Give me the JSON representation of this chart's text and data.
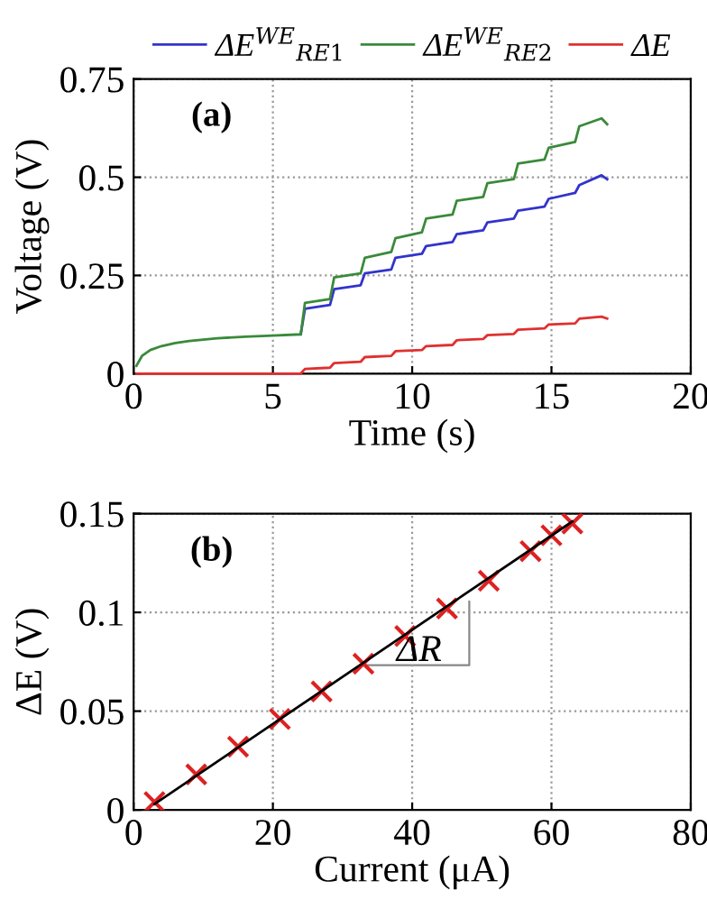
{
  "chart_data": [
    {
      "type": "line",
      "xlabel": "Time (s)",
      "ylabel": "Voltage (V)",
      "xlim": [
        0,
        20
      ],
      "ylim": [
        0,
        0.75
      ],
      "xticks": [
        0,
        5,
        10,
        15,
        20
      ],
      "yticks": [
        0,
        0.25,
        0.5,
        0.75
      ],
      "grid": true,
      "legend": "top",
      "annotations": [
        "(a)"
      ],
      "x": [
        0.1,
        0.3,
        0.6,
        1,
        1.5,
        2,
        3,
        4,
        5,
        6.0,
        6.15,
        7.05,
        7.2,
        8.15,
        8.3,
        9.25,
        9.4,
        10.35,
        10.5,
        11.45,
        11.6,
        12.55,
        12.7,
        13.65,
        13.8,
        14.75,
        14.9,
        15.85,
        16.0,
        16.8,
        17.0
      ],
      "series": [
        {
          "name": "ΔE$^{WE}$$_{RE1}$",
          "color": "#3333cc",
          "values": [
            null,
            null,
            null,
            null,
            null,
            null,
            null,
            null,
            null,
            0.1,
            0.165,
            0.175,
            0.215,
            0.225,
            0.255,
            0.265,
            0.295,
            0.305,
            0.325,
            0.335,
            0.355,
            0.365,
            0.385,
            0.395,
            0.415,
            0.425,
            0.445,
            0.46,
            0.48,
            0.505,
            0.495
          ]
        },
        {
          "name": "ΔE$^{WE}$$_{RE2}$",
          "color": "#3a8a3a",
          "values": [
            0.02,
            0.045,
            0.06,
            0.07,
            0.078,
            0.083,
            0.09,
            0.094,
            0.097,
            0.1,
            0.18,
            0.19,
            0.245,
            0.255,
            0.295,
            0.31,
            0.345,
            0.36,
            0.395,
            0.405,
            0.44,
            0.45,
            0.485,
            0.495,
            0.535,
            0.545,
            0.575,
            0.59,
            0.63,
            0.65,
            0.635
          ]
        },
        {
          "name": "ΔE",
          "color": "#e03030",
          "values": [
            0,
            0,
            0,
            0,
            0,
            0,
            0,
            0,
            0,
            0,
            0.012,
            0.015,
            0.027,
            0.03,
            0.042,
            0.045,
            0.057,
            0.06,
            0.07,
            0.073,
            0.085,
            0.088,
            0.098,
            0.101,
            0.112,
            0.115,
            0.125,
            0.128,
            0.14,
            0.145,
            0.14
          ]
        }
      ]
    },
    {
      "type": "scatter",
      "xlabel": "Current (μA)",
      "ylabel": "ΔE (V)",
      "xlim": [
        0,
        80
      ],
      "ylim": [
        0,
        0.15
      ],
      "xticks": [
        0,
        20,
        40,
        60,
        80
      ],
      "yticks": [
        0,
        0.05,
        0.1,
        0.15
      ],
      "grid": true,
      "annotations": [
        "(b)",
        {
          "text": "ΔR",
          "x": 41,
          "y": 0.08
        }
      ],
      "series": [
        {
          "color": "#dd2222",
          "marker": "cross",
          "x": [
            3,
            9,
            15,
            21,
            27,
            33,
            39,
            45,
            51,
            57,
            60,
            63
          ],
          "values": [
            0.004,
            0.018,
            0.032,
            0.046,
            0.06,
            0.074,
            0.088,
            0.102,
            0.116,
            0.131,
            0.139,
            0.145
          ]
        },
        {
          "type": "line",
          "marker": "none",
          "color": "#000000",
          "x": [
            3,
            63
          ],
          "values": [
            0.003,
            0.146
          ]
        }
      ]
    }
  ]
}
